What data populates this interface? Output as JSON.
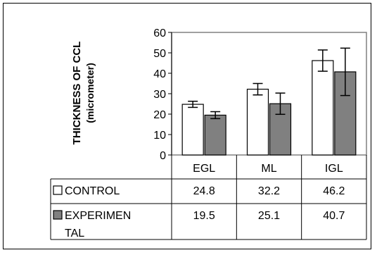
{
  "chart_data": {
    "type": "bar",
    "ylabel_line1": "THICKNESS OF CCL",
    "ylabel_line2": "(micrometer)",
    "ylim": [
      0,
      60
    ],
    "yticks": [
      0,
      10,
      20,
      30,
      40,
      50,
      60
    ],
    "categories": [
      "EGL",
      "ML",
      "IGL"
    ],
    "series": [
      {
        "name": "CONTROL",
        "legend_lines": [
          "CONTROL"
        ],
        "values": [
          24.8,
          32.2,
          46.2
        ],
        "value_labels": [
          "24.8",
          "32.2",
          "46.2"
        ],
        "errors": [
          1.5,
          2.8,
          5.2
        ],
        "color": "#ffffff"
      },
      {
        "name": "EXPERIMENTAL",
        "legend_lines": [
          "EXPERIMEN",
          "TAL"
        ],
        "values": [
          19.5,
          25.1,
          40.7
        ],
        "value_labels": [
          "19.5",
          "25.1",
          "40.7"
        ],
        "errors": [
          1.7,
          5.2,
          11.6
        ],
        "color": "#808080"
      }
    ],
    "grid": false,
    "legend": "data-table"
  }
}
